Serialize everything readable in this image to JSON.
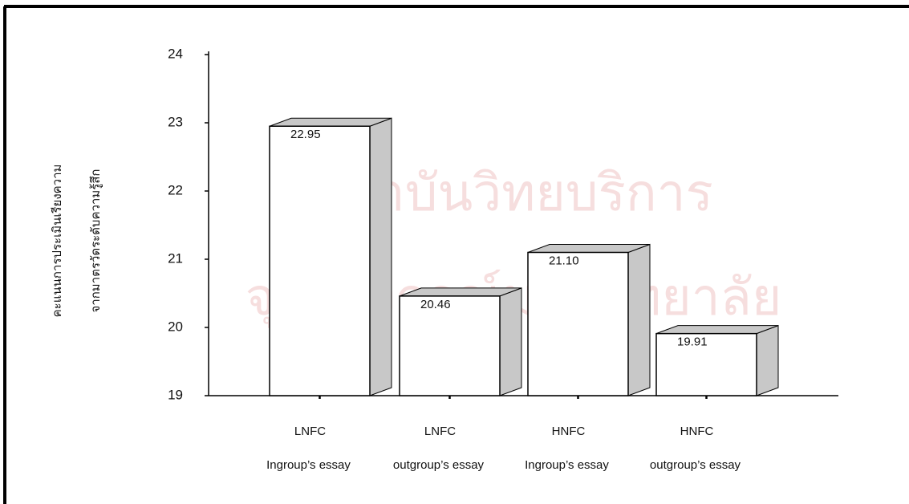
{
  "watermark": [
    "สถาบันวิทยบริการ",
    "จุฬาลงกรณ์มหาวิทยาลัย"
  ],
  "chart_data": {
    "type": "bar3d",
    "ylabel": [
      "คะแนนการประเมินเรียงความ",
      "จากมาตรวัดระดับความรู้สึก"
    ],
    "categories": [
      [
        "LNFC",
        "Ingroup’s essay"
      ],
      [
        "LNFC",
        "outgroup’s essay"
      ],
      [
        "HNFC",
        "Ingroup’s essay"
      ],
      [
        "HNFC",
        "outgroup’s essay"
      ]
    ],
    "values": [
      22.95,
      20.46,
      21.1,
      19.91
    ],
    "value_labels": [
      "22.95",
      "20.46",
      "21.10",
      "19.91"
    ],
    "color": "#ffffff",
    "side_color": "#c8c8c8",
    "ylim": [
      19,
      24
    ],
    "yticks": [
      19,
      20,
      21,
      22,
      23,
      24
    ]
  }
}
